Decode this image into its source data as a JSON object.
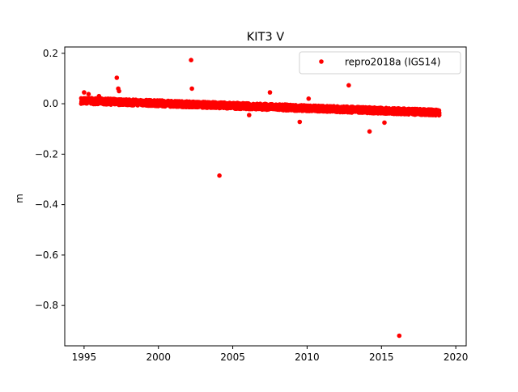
{
  "chart_data": {
    "type": "scatter",
    "title": "KIT3 V",
    "xlabel": "",
    "ylabel": "m",
    "xlim": [
      1993.7,
      2020.7
    ],
    "ylim": [
      -0.96,
      0.225
    ],
    "xticks": [
      1995,
      2000,
      2005,
      2010,
      2015,
      2020
    ],
    "xtick_labels": [
      "1995",
      "2000",
      "2005",
      "2010",
      "2015",
      "2020"
    ],
    "yticks": [
      0.2,
      0.0,
      -0.2,
      -0.4,
      -0.6,
      -0.8
    ],
    "ytick_labels": [
      "0.2",
      "0.0",
      "−0.2",
      "−0.4",
      "−0.6",
      "−0.8"
    ],
    "grid": false,
    "legend_position": "upper right",
    "series": [
      {
        "name": "repro2018a (IGS14)",
        "color": "#ff0000",
        "marker": "circle",
        "trend": {
          "x": [
            1994.8,
            2018.9
          ],
          "y": [
            0.012,
            -0.035
          ],
          "noise": 0.012
        },
        "x": [
          1995.0,
          1995.3,
          1996.0,
          1997.2,
          1997.3,
          1997.35,
          2002.2,
          2002.25,
          2004.1,
          2006.1,
          2007.5,
          2009.5,
          2010.1,
          2012.8,
          2014.2,
          2015.2,
          2016.2
        ],
        "y": [
          0.045,
          0.038,
          0.03,
          0.103,
          0.06,
          0.05,
          0.173,
          0.06,
          -0.285,
          -0.045,
          0.045,
          -0.072,
          0.02,
          0.073,
          -0.11,
          -0.075,
          -0.92
        ]
      }
    ]
  }
}
